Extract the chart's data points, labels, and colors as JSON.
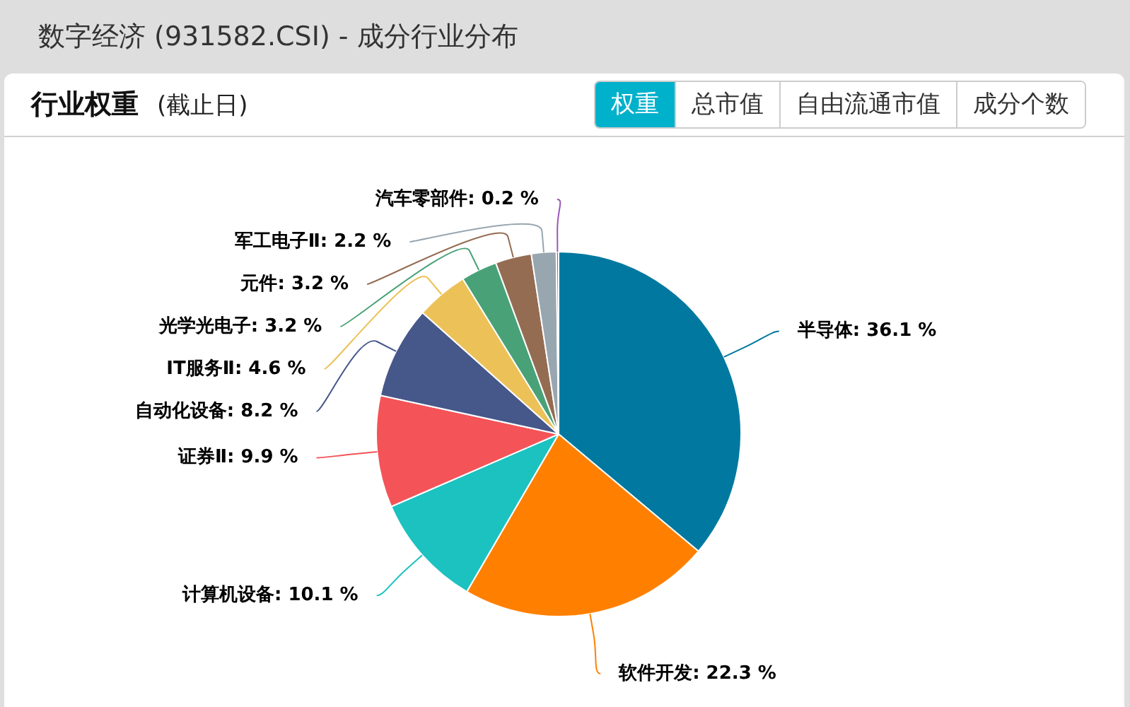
{
  "chart_data": {
    "type": "pie",
    "title": "数字经济 (931582.CSI) - 成分行业分布",
    "subtitle": "行业权重",
    "annotations": [
      "(截止日)",
      "权重",
      "总市值",
      "自由流通市值",
      "成分个数"
    ],
    "categories": [
      "半导体",
      "软件开发",
      "计算机设备",
      "证券Ⅱ",
      "自动化设备",
      "IT服务Ⅱ",
      "光学光电子",
      "元件",
      "军工电子Ⅱ",
      "汽车零部件"
    ],
    "values": [
      36.1,
      22.3,
      10.1,
      9.9,
      8.2,
      4.6,
      3.2,
      3.2,
      2.2,
      0.2
    ],
    "value_labels": [
      "36.1 %",
      "22.3 %",
      "10.1 %",
      "9.9 %",
      "8.2 %",
      "4.6 %",
      "3.2 %",
      "3.2 %",
      "2.2 %",
      "0.2 %"
    ],
    "colors": [
      "#00789f",
      "#ff8000",
      "#1bc2c0",
      "#f45358",
      "#46578a",
      "#ecc158",
      "#49a277",
      "#946c52",
      "#98a6b0",
      "#9b59b6"
    ]
  }
}
